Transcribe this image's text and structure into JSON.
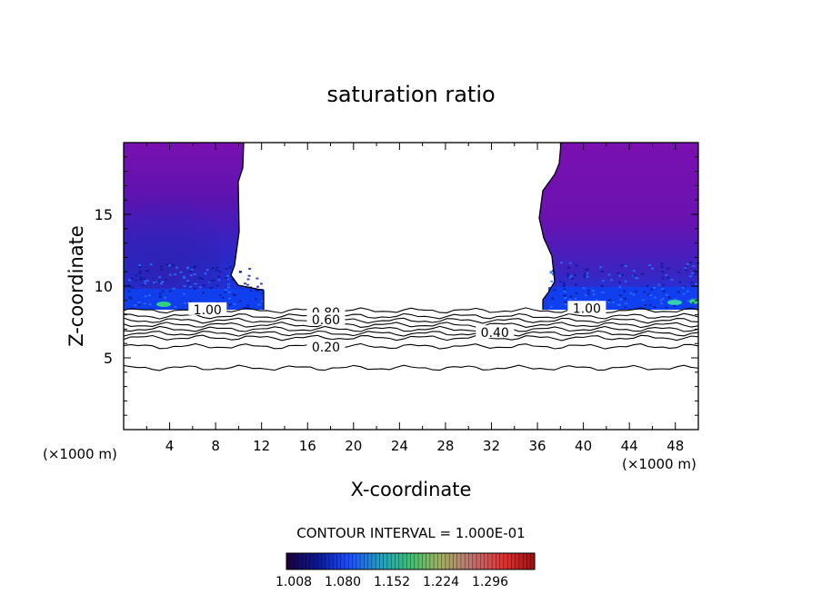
{
  "chart_data": {
    "type": "contour",
    "title": "saturation ratio",
    "xlabel": "X-coordinate",
    "ylabel": "Z-coordinate",
    "x_unit_left": "(×1000 m)",
    "x_unit_right": "(×1000 m)",
    "xlim": [
      0,
      50
    ],
    "ylim": [
      0,
      20
    ],
    "x_ticks": [
      4,
      8,
      12,
      16,
      20,
      24,
      28,
      32,
      36,
      40,
      44,
      48
    ],
    "y_ticks": [
      5,
      10,
      15
    ],
    "contour_interval_text": "CONTOUR INTERVAL = 1.000E-01",
    "contour_labels": [
      {
        "text": "1.00",
        "x": 7.3,
        "z": 8.3
      },
      {
        "text": "1.00",
        "x": 40.3,
        "z": 8.4
      },
      {
        "text": "0.80",
        "x": 17.6,
        "z": 8.1
      },
      {
        "text": "0.60",
        "x": 17.6,
        "z": 7.6
      },
      {
        "text": "0.40",
        "x": 32.3,
        "z": 6.7
      },
      {
        "text": "0.20",
        "x": 17.6,
        "z": 5.7
      }
    ],
    "contour_lines": [
      {
        "level": 0.9,
        "z": 8.3
      },
      {
        "level": 0.8,
        "z": 7.9
      },
      {
        "level": 0.7,
        "z": 7.6
      },
      {
        "level": 0.6,
        "z": 7.3
      },
      {
        "level": 0.5,
        "z": 7.0
      },
      {
        "level": 0.4,
        "z": 6.7
      },
      {
        "level": 0.3,
        "z": 6.4
      },
      {
        "level": 0.2,
        "z": 5.8
      },
      {
        "level": 0.1,
        "z": 4.3
      }
    ],
    "colorbar": {
      "labels": [
        "1.008",
        "1.080",
        "1.152",
        "1.224",
        "1.296"
      ],
      "colors": [
        "#1a003a",
        "#0a1a9a",
        "#1e4cff",
        "#20a0c0",
        "#40c070",
        "#a0b060",
        "#c07070",
        "#e03030",
        "#9a1010"
      ]
    },
    "colors": {
      "supersat_base": "#7a10b0",
      "supersat_deep": "#3a1aa8",
      "supersat_high": "#1040f0",
      "green_patch": "#30d080"
    }
  }
}
